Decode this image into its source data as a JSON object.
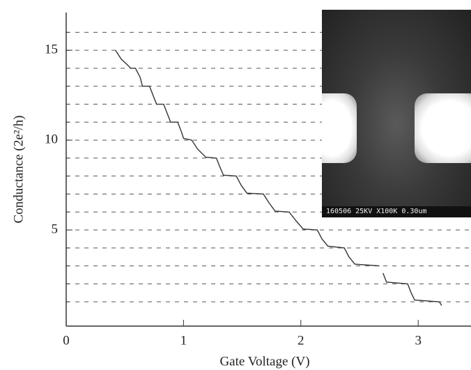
{
  "chart_data": {
    "type": "line",
    "xlabel": "Gate Voltage (V)",
    "ylabel": "Conductance (2e²/h)",
    "inset_caption": "160506 25KV X100K 0.30um",
    "xlim": [
      0,
      3.45
    ],
    "xticks": [
      0,
      1,
      2,
      3
    ],
    "ylim": [
      -0.35,
      17.1
    ],
    "yticks": [
      5,
      10,
      15
    ],
    "yticks_minor": [
      1,
      2,
      3,
      4,
      5,
      6,
      7,
      8,
      9,
      10,
      11,
      12,
      13,
      14,
      15,
      16
    ],
    "grid": "dashed",
    "series": [
      {
        "color": "#333333",
        "x": [
          0.42,
          0.47,
          0.52,
          0.55,
          0.59,
          0.63,
          0.65,
          0.71,
          0.74,
          0.77,
          0.83,
          0.86,
          0.89,
          0.95,
          0.98,
          1.0,
          1.07,
          1.12,
          1.19,
          1.28,
          1.31,
          1.34,
          1.45,
          1.49,
          1.54,
          1.68,
          1.73,
          1.78,
          1.9,
          1.96,
          2.02,
          2.14,
          2.18,
          2.23,
          2.37,
          2.41,
          2.46,
          2.67,
          null,
          2.7,
          2.73,
          2.91,
          2.94,
          2.97,
          3.18,
          3.2
        ],
        "values": [
          15,
          14.5,
          14.2,
          14.0,
          14.0,
          13.5,
          13.0,
          13.0,
          12.5,
          12.0,
          12.0,
          11.5,
          11.0,
          11.0,
          10.5,
          10.1,
          10.0,
          9.5,
          9.05,
          9.0,
          8.5,
          8.05,
          8.0,
          7.5,
          7.05,
          7.0,
          6.5,
          6.05,
          6.0,
          5.5,
          5.05,
          5.0,
          4.5,
          4.1,
          4.0,
          3.5,
          3.1,
          3.0,
          null,
          2.6,
          2.1,
          2.0,
          1.5,
          1.1,
          1.0,
          0.8
        ]
      }
    ]
  }
}
